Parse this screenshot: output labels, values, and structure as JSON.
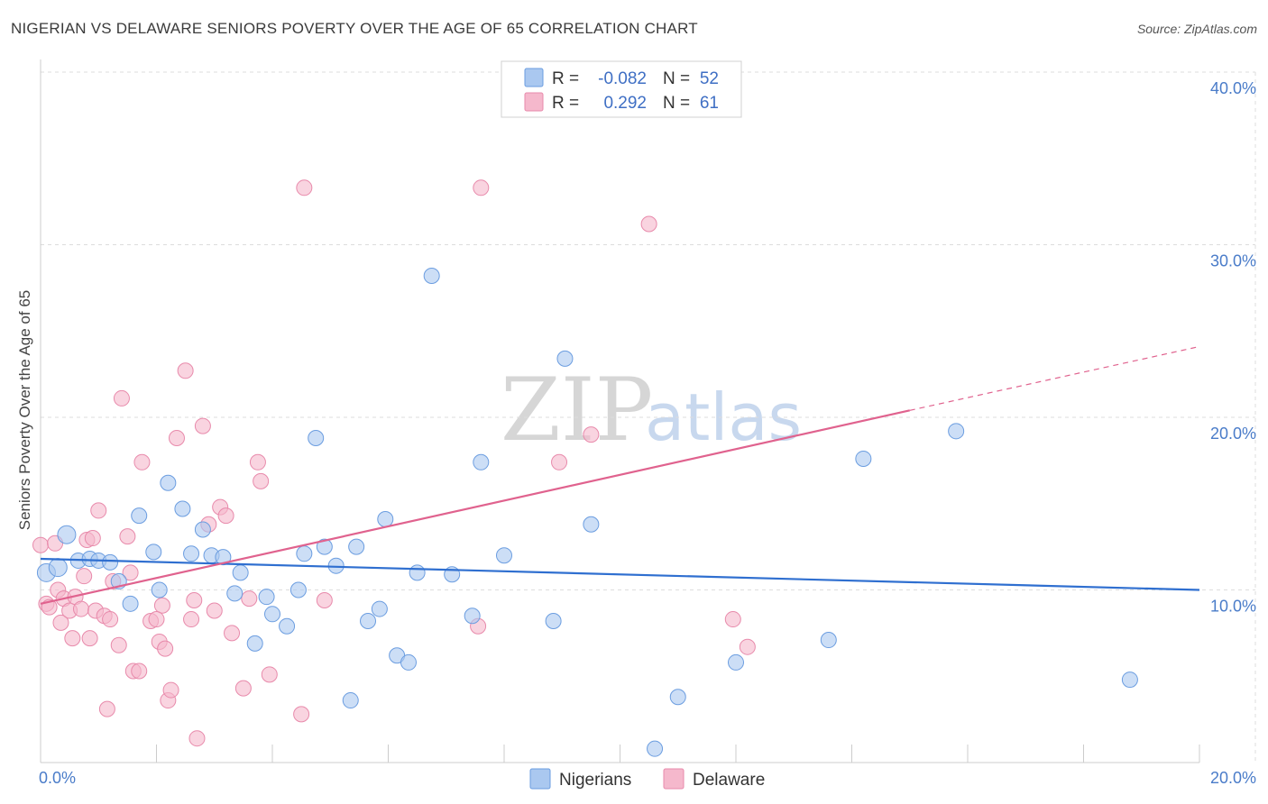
{
  "title": "NIGERIAN VS DELAWARE SENIORS POVERTY OVER THE AGE OF 65 CORRELATION CHART",
  "source": "Source: ZipAtlas.com",
  "watermark": {
    "zip": "ZIP",
    "atlas": "atlas"
  },
  "legend": {
    "rows": [
      {
        "r_label": "R =",
        "r_value": "-0.082",
        "n_label": "N =",
        "n_value": "52"
      },
      {
        "r_label": "R =",
        "r_value": "0.292",
        "n_label": "N =",
        "n_value": "61"
      }
    ]
  },
  "bottom_legend": [
    {
      "label": "Nigerians"
    },
    {
      "label": "Delaware"
    }
  ],
  "colors": {
    "blue_fill": "#aac8f0",
    "blue_stroke": "#6b9de0",
    "blue_line": "#2f6fd0",
    "pink_fill": "#f5b8cc",
    "pink_stroke": "#e88aab",
    "pink_line": "#e0628e",
    "tick_text": "#4a7cc9",
    "grid": "#dddddd"
  },
  "chart_data": {
    "type": "scatter",
    "title": "NIGERIAN VS DELAWARE SENIORS POVERTY OVER THE AGE OF 65 CORRELATION CHART",
    "xlabel": "",
    "ylabel": "Seniors Poverty Over the Age of 65",
    "xlim": [
      0,
      20
    ],
    "ylim": [
      0,
      40
    ],
    "x_tick_labels": [
      "0.0%",
      "20.0%"
    ],
    "y_ticks": [
      10,
      20,
      30,
      40
    ],
    "y_tick_labels": [
      "10.0%",
      "20.0%",
      "30.0%",
      "40.0%"
    ],
    "grid": true,
    "series": [
      {
        "name": "Nigerians",
        "r": -0.082,
        "n": 52,
        "trend": {
          "x0": 0,
          "y0": 11.8,
          "x1": 20,
          "y1": 10.0
        },
        "points": [
          [
            0.1,
            11.0
          ],
          [
            0.3,
            11.3
          ],
          [
            0.45,
            13.2
          ],
          [
            0.65,
            11.7
          ],
          [
            0.85,
            11.8
          ],
          [
            1.0,
            11.7
          ],
          [
            1.2,
            11.6
          ],
          [
            1.35,
            10.5
          ],
          [
            1.55,
            9.2
          ],
          [
            1.7,
            14.3
          ],
          [
            1.95,
            12.2
          ],
          [
            2.05,
            10.0
          ],
          [
            2.2,
            16.2
          ],
          [
            2.45,
            14.7
          ],
          [
            2.6,
            12.1
          ],
          [
            2.8,
            13.5
          ],
          [
            2.95,
            12.0
          ],
          [
            3.15,
            11.9
          ],
          [
            3.35,
            9.8
          ],
          [
            3.45,
            11.0
          ],
          [
            3.7,
            6.9
          ],
          [
            3.9,
            9.6
          ],
          [
            4.0,
            8.6
          ],
          [
            4.25,
            7.9
          ],
          [
            4.45,
            10.0
          ],
          [
            4.55,
            12.1
          ],
          [
            4.75,
            18.8
          ],
          [
            4.9,
            12.5
          ],
          [
            5.1,
            11.4
          ],
          [
            5.35,
            3.6
          ],
          [
            5.45,
            12.5
          ],
          [
            5.65,
            8.2
          ],
          [
            5.85,
            8.9
          ],
          [
            5.95,
            14.1
          ],
          [
            6.15,
            6.2
          ],
          [
            6.35,
            5.8
          ],
          [
            6.5,
            11.0
          ],
          [
            6.75,
            28.2
          ],
          [
            7.1,
            10.9
          ],
          [
            7.45,
            8.5
          ],
          [
            7.6,
            17.4
          ],
          [
            8.0,
            12.0
          ],
          [
            8.85,
            8.2
          ],
          [
            9.05,
            23.4
          ],
          [
            9.5,
            13.8
          ],
          [
            10.6,
            0.8
          ],
          [
            11.0,
            3.8
          ],
          [
            12.0,
            5.8
          ],
          [
            13.6,
            7.1
          ],
          [
            14.2,
            17.6
          ],
          [
            15.8,
            19.2
          ],
          [
            18.8,
            4.8
          ]
        ]
      },
      {
        "name": "Delaware",
        "r": 0.292,
        "n": 61,
        "trend": {
          "x0": 0,
          "y0": 9.2,
          "x1": 15.0,
          "y1": 20.4,
          "dash_x1": 20.0,
          "dash_y1": 24.1
        },
        "points": [
          [
            0.0,
            12.6
          ],
          [
            0.1,
            9.2
          ],
          [
            0.15,
            9.0
          ],
          [
            0.25,
            12.7
          ],
          [
            0.3,
            10.0
          ],
          [
            0.35,
            8.1
          ],
          [
            0.4,
            9.5
          ],
          [
            0.5,
            8.8
          ],
          [
            0.55,
            7.2
          ],
          [
            0.6,
            9.6
          ],
          [
            0.7,
            8.9
          ],
          [
            0.75,
            10.8
          ],
          [
            0.8,
            12.9
          ],
          [
            0.85,
            7.2
          ],
          [
            0.9,
            13.0
          ],
          [
            0.95,
            8.8
          ],
          [
            1.0,
            14.6
          ],
          [
            1.1,
            8.5
          ],
          [
            1.15,
            3.1
          ],
          [
            1.2,
            8.3
          ],
          [
            1.25,
            10.5
          ],
          [
            1.35,
            6.8
          ],
          [
            1.4,
            21.1
          ],
          [
            1.5,
            13.1
          ],
          [
            1.55,
            11.0
          ],
          [
            1.6,
            5.3
          ],
          [
            1.7,
            5.3
          ],
          [
            1.75,
            17.4
          ],
          [
            1.9,
            8.2
          ],
          [
            2.05,
            7.0
          ],
          [
            2.1,
            9.1
          ],
          [
            2.15,
            6.6
          ],
          [
            2.2,
            3.6
          ],
          [
            2.25,
            4.2
          ],
          [
            2.35,
            18.8
          ],
          [
            2.5,
            22.7
          ],
          [
            2.6,
            8.3
          ],
          [
            2.65,
            9.4
          ],
          [
            2.7,
            1.4
          ],
          [
            2.8,
            19.5
          ],
          [
            2.9,
            13.8
          ],
          [
            3.0,
            8.8
          ],
          [
            3.1,
            14.8
          ],
          [
            3.2,
            14.3
          ],
          [
            3.3,
            7.5
          ],
          [
            3.5,
            4.3
          ],
          [
            3.6,
            9.5
          ],
          [
            3.75,
            17.4
          ],
          [
            3.8,
            16.3
          ],
          [
            3.95,
            5.1
          ],
          [
            4.5,
            2.8
          ],
          [
            4.55,
            33.3
          ],
          [
            4.9,
            9.4
          ],
          [
            7.55,
            7.9
          ],
          [
            7.6,
            33.3
          ],
          [
            8.95,
            17.4
          ],
          [
            9.5,
            19.0
          ],
          [
            10.5,
            31.2
          ],
          [
            11.95,
            8.3
          ],
          [
            12.2,
            6.7
          ],
          [
            2.0,
            8.3
          ]
        ]
      }
    ]
  }
}
